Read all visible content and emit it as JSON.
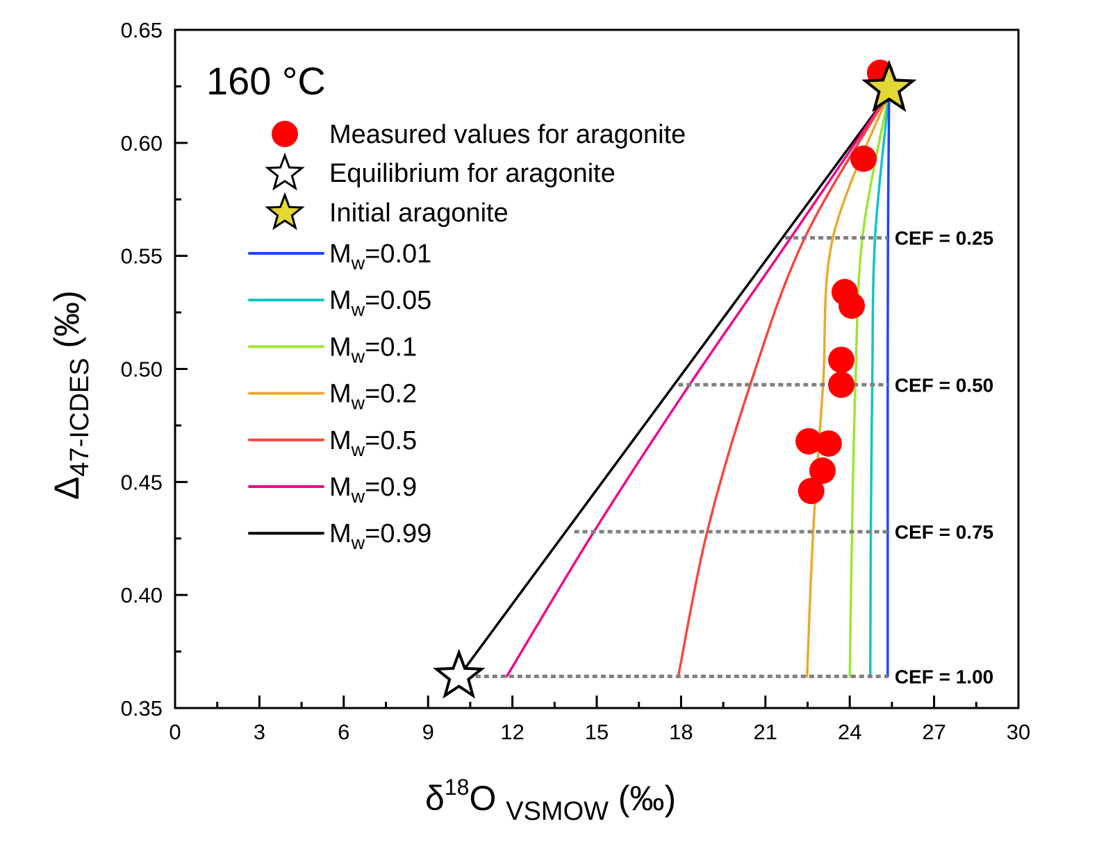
{
  "chart_data": {
    "type": "line",
    "title": "",
    "annotation": "160 °C",
    "xlabel": {
      "main": "δ",
      "sup": "18",
      "mid": "O ",
      "sub": "VSMOW",
      "unit": " (‰)"
    },
    "ylabel": {
      "main": "Δ",
      "sub": "47-ICDES",
      "unit": " (‰)"
    },
    "xlim": [
      0,
      30
    ],
    "ylim": [
      0.35,
      0.65
    ],
    "x_ticks": [
      0,
      3,
      6,
      9,
      12,
      15,
      18,
      21,
      24,
      27,
      30
    ],
    "x_tick_labels": [
      "0",
      "3",
      "6",
      "9",
      "12",
      "15",
      "18",
      "21",
      "24",
      "27",
      "30"
    ],
    "x_minor_ticks": [
      1.5,
      4.5,
      7.5,
      10.5,
      13.5,
      16.5,
      19.5,
      22.5,
      25.5,
      28.5
    ],
    "y_ticks": [
      0.35,
      0.4,
      0.45,
      0.5,
      0.55,
      0.6,
      0.65
    ],
    "y_tick_labels": [
      "0.35",
      "0.40",
      "0.45",
      "0.50",
      "0.55",
      "0.60",
      "0.65"
    ],
    "y_minor_ticks": [
      0.375,
      0.425,
      0.475,
      0.525,
      0.575,
      0.625
    ],
    "grid": false,
    "legend_position": "top-left",
    "measured": {
      "label": "Measured values for aragonite",
      "color": "#ff0000",
      "points": [
        [
          25.08,
          0.631
        ],
        [
          24.49,
          0.593
        ],
        [
          23.82,
          0.534
        ],
        [
          24.07,
          0.528
        ],
        [
          23.7,
          0.504
        ],
        [
          23.7,
          0.493
        ],
        [
          22.54,
          0.468
        ],
        [
          23.25,
          0.467
        ],
        [
          23.03,
          0.455
        ],
        [
          22.63,
          0.446
        ]
      ]
    },
    "equilibrium": {
      "label": "Equilibrium for aragonite",
      "point": [
        10.1,
        0.364
      ],
      "fill": "#ffffff"
    },
    "initial": {
      "label": "Initial aragonite",
      "point": [
        25.4,
        0.624
      ],
      "fill": "#e3d835"
    },
    "series": [
      {
        "name": "Mw=0.01",
        "label_main": "M",
        "label_sub": "w",
        "label_val": "=0.01",
        "color": "#2044ff",
        "x": [
          25.4,
          25.36,
          25.35,
          25.35,
          25.35
        ],
        "y": [
          0.622,
          0.558,
          0.493,
          0.428,
          0.364
        ]
      },
      {
        "name": "Mw=0.05",
        "label_main": "M",
        "label_sub": "w",
        "label_val": "=0.05",
        "color": "#12c4c8",
        "x": [
          25.4,
          24.9,
          24.8,
          24.75,
          24.73
        ],
        "y": [
          0.622,
          0.558,
          0.493,
          0.428,
          0.364
        ]
      },
      {
        "name": "Mw=0.1",
        "label_main": "M",
        "label_sub": "w",
        "label_val": "=0.1",
        "color": "#9be632",
        "x": [
          25.4,
          24.45,
          24.2,
          24.08,
          24.0
        ],
        "y": [
          0.622,
          0.558,
          0.493,
          0.428,
          0.364
        ]
      },
      {
        "name": "Mw=0.2",
        "label_main": "M",
        "label_sub": "w",
        "label_val": "=0.2",
        "color": "#e8aa30",
        "x": [
          25.4,
          23.4,
          23.05,
          22.7,
          22.48
        ],
        "y": [
          0.622,
          0.558,
          0.493,
          0.428,
          0.364
        ]
      },
      {
        "name": "Mw=0.5",
        "label_main": "M",
        "label_sub": "w",
        "label_val": "=0.5",
        "color": "#f8463c",
        "x": [
          25.4,
          22.4,
          20.46,
          18.93,
          17.9
        ],
        "y": [
          0.622,
          0.558,
          0.493,
          0.428,
          0.364
        ]
      },
      {
        "name": "Mw=0.9",
        "label_main": "M",
        "label_sub": "w",
        "label_val": "=0.9",
        "color": "#ee0a88",
        "x": [
          25.4,
          21.9,
          18.3,
          14.9,
          11.8
        ],
        "y": [
          0.622,
          0.558,
          0.493,
          0.428,
          0.364
        ]
      },
      {
        "name": "Mw=0.99",
        "label_main": "M",
        "label_sub": "w",
        "label_val": "=0.99",
        "color": "#000000",
        "x": [
          25.4,
          10.1
        ],
        "y": [
          0.622,
          0.364
        ]
      }
    ],
    "cef_lines": [
      {
        "label": "CEF = 0.25",
        "y": 0.558,
        "x_start": 21.7,
        "x_end": 25.35
      },
      {
        "label": "CEF = 0.50",
        "y": 0.493,
        "x_start": 17.9,
        "x_end": 25.35
      },
      {
        "label": "CEF = 0.75",
        "y": 0.428,
        "x_start": 14.2,
        "x_end": 25.35
      },
      {
        "label": "CEF = 1.00",
        "y": 0.364,
        "x_start": 10.4,
        "x_end": 25.35
      }
    ],
    "cef_line_color": "#808080"
  }
}
